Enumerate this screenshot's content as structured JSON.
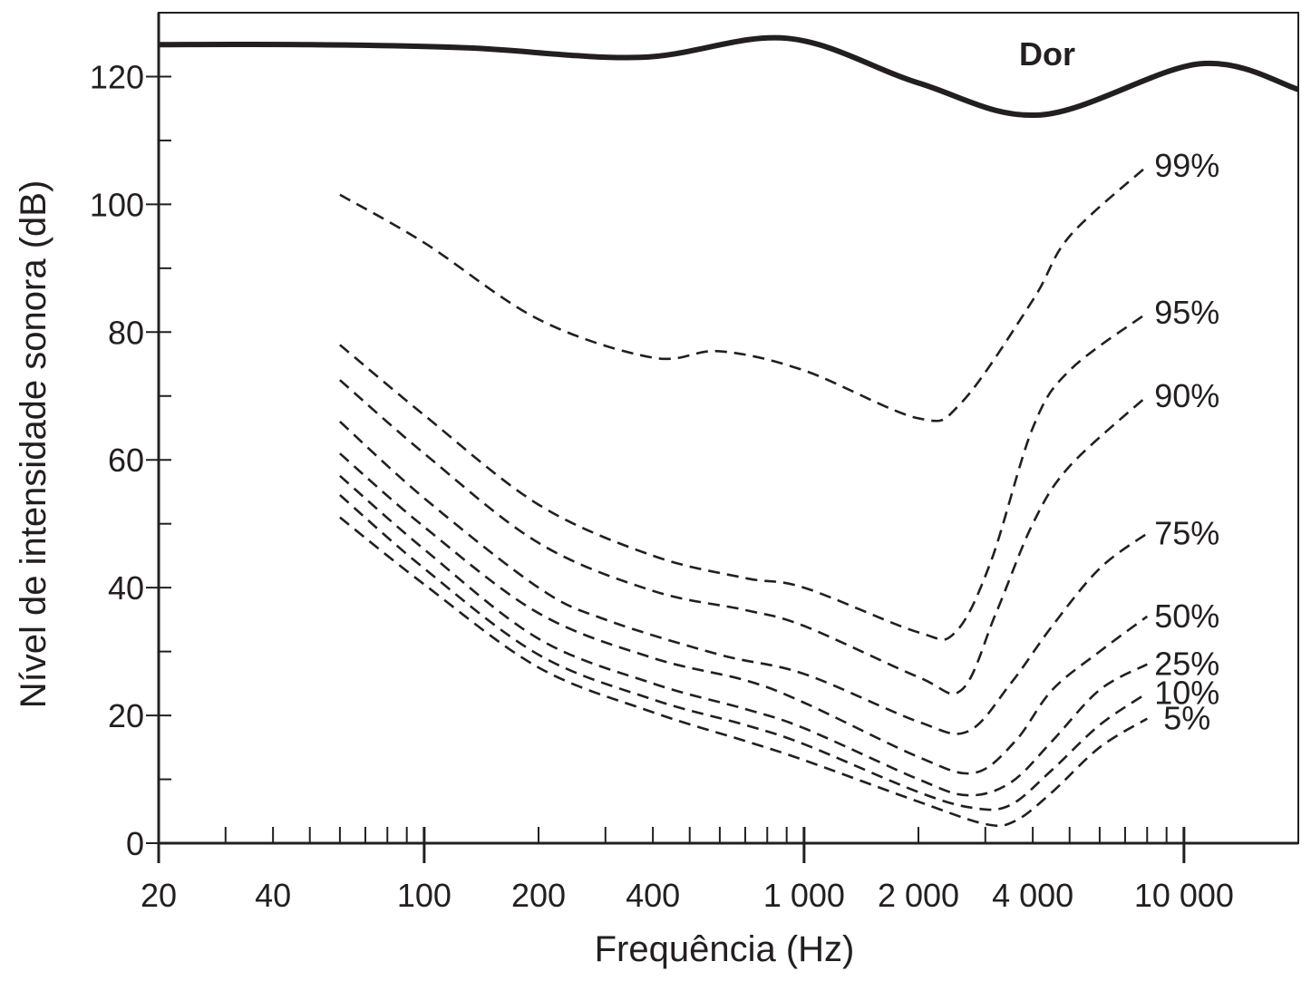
{
  "chart_data": {
    "type": "line",
    "title": "",
    "xlabel": "Frequência (Hz)",
    "ylabel": "Nível de intensidade sonora (dB)",
    "x_scale": "log",
    "xlim": [
      20,
      20000
    ],
    "ylim": [
      0,
      130
    ],
    "x_ticks": [
      {
        "value": 20,
        "label": "20"
      },
      {
        "value": 40,
        "label": "40"
      },
      {
        "value": 100,
        "label": "100"
      },
      {
        "value": 200,
        "label": "200"
      },
      {
        "value": 400,
        "label": "400"
      },
      {
        "value": 1000,
        "label": "1 000"
      },
      {
        "value": 2000,
        "label": "2 000"
      },
      {
        "value": 4000,
        "label": "4 000"
      },
      {
        "value": 10000,
        "label": "10 000"
      }
    ],
    "x_minor_ticks": [
      30,
      50,
      60,
      70,
      80,
      90,
      300,
      500,
      600,
      700,
      800,
      900,
      3000,
      5000,
      6000,
      7000,
      8000,
      9000
    ],
    "y_ticks": [
      0,
      20,
      40,
      60,
      80,
      100,
      120
    ],
    "y_minor_ticks": [
      10,
      30,
      50,
      70,
      90,
      110
    ],
    "grid": false,
    "legend": "none",
    "colors": {
      "ink": "#231f20"
    },
    "series": [
      {
        "name": "Dor",
        "style": "solid",
        "x": [
          20,
          50,
          130,
          370,
          900,
          2000,
          4200,
          11000,
          20000
        ],
        "y": [
          125,
          125,
          124.5,
          123,
          126,
          119,
          114,
          122,
          118
        ]
      },
      {
        "name": "99%",
        "style": "dashed",
        "x": [
          60,
          100,
          200,
          400,
          600,
          1000,
          2000,
          2600,
          4000,
          5000,
          8000
        ],
        "y": [
          101.5,
          94,
          82,
          76,
          77,
          74,
          66.5,
          69,
          85,
          95,
          106
        ]
      },
      {
        "name": "95%",
        "style": "dashed",
        "x": [
          60,
          100,
          200,
          400,
          700,
          1000,
          2000,
          2500,
          3100,
          4000,
          5000,
          8000
        ],
        "y": [
          78,
          67,
          53,
          45,
          41.5,
          40,
          33,
          33,
          44,
          65,
          74,
          83
        ]
      },
      {
        "name": "90%",
        "style": "dashed",
        "x": [
          60,
          100,
          200,
          400,
          700,
          1000,
          2000,
          2600,
          3200,
          4000,
          5000,
          8000
        ],
        "y": [
          72.5,
          61,
          47,
          39.5,
          36.5,
          34,
          26,
          24,
          36,
          50,
          59,
          70
        ]
      },
      {
        "name": "75%",
        "style": "dashed",
        "x": [
          60,
          100,
          200,
          300,
          600,
          1000,
          2000,
          2700,
          3500,
          4500,
          6000,
          8000
        ],
        "y": [
          66,
          54,
          40,
          35,
          29.5,
          26.5,
          19,
          17.5,
          25,
          34,
          43,
          48.5
        ]
      },
      {
        "name": "50%",
        "style": "dashed",
        "x": [
          60,
          100,
          200,
          400,
          700,
          1000,
          2000,
          2800,
          3600,
          4500,
          6000,
          8000
        ],
        "y": [
          61,
          49.5,
          36,
          29,
          25.5,
          22,
          13.5,
          11,
          16,
          24,
          30,
          35.5
        ]
      },
      {
        "name": "25%",
        "style": "dashed",
        "x": [
          60,
          100,
          200,
          400,
          700,
          1000,
          2000,
          2700,
          3500,
          4500,
          6000,
          8000
        ],
        "y": [
          57.5,
          46,
          32,
          25,
          21,
          18,
          10,
          7.5,
          9.5,
          16,
          24,
          28
        ]
      },
      {
        "name": "10%",
        "style": "dashed",
        "x": [
          60,
          100,
          200,
          400,
          700,
          1000,
          2000,
          2800,
          3500,
          4500,
          6000,
          8000
        ],
        "y": [
          54.5,
          43,
          29.5,
          22.5,
          18.5,
          15.5,
          8,
          5.5,
          6,
          11.5,
          18.5,
          23.5
        ]
      },
      {
        "name": "5%",
        "style": "dashed",
        "x": [
          60,
          100,
          200,
          400,
          700,
          1000,
          2000,
          3000,
          3600,
          4500,
          6000,
          8000
        ],
        "y": [
          51,
          40.5,
          27.5,
          20.5,
          16,
          13,
          6.5,
          3,
          3.5,
          8,
          15,
          19.5
        ]
      }
    ]
  }
}
